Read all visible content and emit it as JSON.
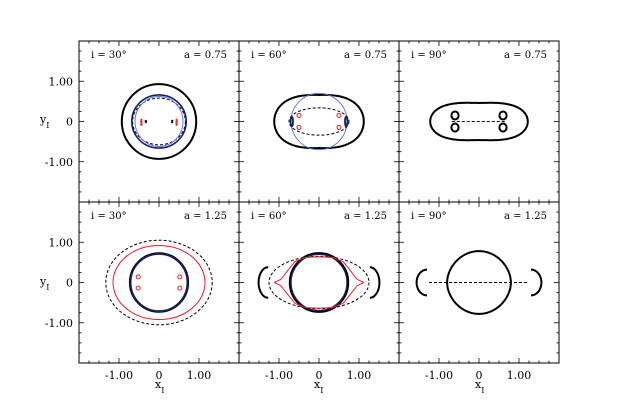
{
  "chart_data": {
    "type": "line",
    "grid_layout": "2 rows x 3 columns, shared axes",
    "xlabel": "x",
    "xlabel_sub": "I",
    "ylabel": "y",
    "ylabel_sub": "I",
    "xlim": [
      -2.0,
      2.0
    ],
    "ylim": [
      -2.0,
      2.0
    ],
    "x_ticks": [
      -1.0,
      0.0,
      1.0
    ],
    "x_tick_labels": [
      "-1.00",
      "0",
      "1.00"
    ],
    "y_ticks": [
      1.0,
      0.0,
      -1.0
    ],
    "y_tick_labels": [
      "1.00",
      "0",
      "-1.00"
    ],
    "colors": {
      "black": "#000000",
      "red": "#e8202a",
      "blue": "#5b7fd6",
      "navy": "#1a1f5a"
    },
    "panels": [
      {
        "id": "p1",
        "row": 0,
        "col": 0,
        "incl_label": "i = 30°",
        "a_label": "a = 0.75",
        "curves": [
          {
            "style": "solid",
            "color": "black",
            "width": 2.0,
            "kind": "ellipse",
            "cx": 0,
            "cy": 0,
            "rx": 0.93,
            "ry": 0.93
          },
          {
            "style": "dashed",
            "color": "black",
            "width": 1.0,
            "kind": "ellipse",
            "cx": 0,
            "cy": 0,
            "rx": 0.66,
            "ry": 0.58
          },
          {
            "style": "solid",
            "color": "navy",
            "width": 1.6,
            "kind": "ellipse",
            "cx": 0,
            "cy": 0,
            "rx": 0.68,
            "ry": 0.66
          },
          {
            "style": "solid",
            "color": "blue",
            "width": 1.0,
            "kind": "ellipse",
            "cx": 0,
            "cy": 0,
            "rx": 0.6,
            "ry": 0.62
          },
          {
            "style": "solid",
            "color": "red",
            "width": 1.0,
            "kind": "ellipse",
            "cx": -0.44,
            "cy": 0.02,
            "rx": 0.015,
            "ry": 0.04
          },
          {
            "style": "solid",
            "color": "red",
            "width": 1.0,
            "kind": "ellipse",
            "cx": 0.44,
            "cy": 0.02,
            "rx": 0.015,
            "ry": 0.04
          },
          {
            "style": "solid",
            "color": "red",
            "width": 1.0,
            "kind": "ellipse",
            "cx": -0.44,
            "cy": -0.06,
            "rx": 0.015,
            "ry": 0.04
          },
          {
            "style": "solid",
            "color": "red",
            "width": 1.0,
            "kind": "ellipse",
            "cx": 0.44,
            "cy": -0.06,
            "rx": 0.015,
            "ry": 0.04
          },
          {
            "style": "solid",
            "color": "black",
            "width": 1.0,
            "kind": "ellipse",
            "cx": -0.33,
            "cy": 0.0,
            "rx": 0.015,
            "ry": 0.03
          },
          {
            "style": "solid",
            "color": "black",
            "width": 1.0,
            "kind": "ellipse",
            "cx": 0.33,
            "cy": 0.0,
            "rx": 0.015,
            "ry": 0.03
          }
        ]
      },
      {
        "id": "p2",
        "row": 0,
        "col": 1,
        "incl_label": "i = 60°",
        "a_label": "a = 0.75",
        "curves": [
          {
            "style": "solid",
            "color": "black",
            "width": 2.0,
            "kind": "pinched",
            "rx": 1.12,
            "ry_center": 0.66,
            "ry_side": 0.8
          },
          {
            "style": "solid",
            "color": "blue",
            "width": 1.0,
            "kind": "ellipse",
            "cx": 0,
            "cy": 0,
            "rx": 0.7,
            "ry": 0.7
          },
          {
            "style": "dashed",
            "color": "black",
            "width": 1.0,
            "kind": "ellipse",
            "cx": 0,
            "cy": 0,
            "rx": 0.75,
            "ry": 0.34
          },
          {
            "style": "solid",
            "color": "navy",
            "width": 1.8,
            "kind": "ellipse",
            "cx": -0.68,
            "cy": 0.0,
            "rx": 0.03,
            "ry": 0.12
          },
          {
            "style": "solid",
            "color": "navy",
            "width": 1.8,
            "kind": "ellipse",
            "cx": 0.68,
            "cy": 0.0,
            "rx": 0.03,
            "ry": 0.12
          },
          {
            "style": "solid",
            "color": "red",
            "width": 1.0,
            "kind": "ellipse",
            "cx": -0.5,
            "cy": 0.15,
            "rx": 0.05,
            "ry": 0.05
          },
          {
            "style": "solid",
            "color": "red",
            "width": 1.0,
            "kind": "ellipse",
            "cx": 0.5,
            "cy": 0.15,
            "rx": 0.05,
            "ry": 0.05
          },
          {
            "style": "solid",
            "color": "red",
            "width": 1.0,
            "kind": "ellipse",
            "cx": -0.5,
            "cy": -0.15,
            "rx": 0.05,
            "ry": 0.05
          },
          {
            "style": "solid",
            "color": "red",
            "width": 1.0,
            "kind": "ellipse",
            "cx": 0.5,
            "cy": -0.15,
            "rx": 0.05,
            "ry": 0.05
          }
        ]
      },
      {
        "id": "p3",
        "row": 0,
        "col": 2,
        "incl_label": "i = 90°",
        "a_label": "a = 0.75",
        "curves": [
          {
            "style": "solid",
            "color": "black",
            "width": 2.0,
            "kind": "pinched",
            "rx": 1.22,
            "ry_center": 0.46,
            "ry_side": 0.62
          },
          {
            "style": "dashed",
            "color": "black",
            "width": 1.0,
            "kind": "segment",
            "x1": -0.68,
            "y1": 0.0,
            "x2": 0.68,
            "y2": 0.0
          },
          {
            "style": "solid",
            "color": "black",
            "width": 2.0,
            "kind": "ellipse",
            "cx": -0.6,
            "cy": 0.15,
            "rx": 0.09,
            "ry": 0.1
          },
          {
            "style": "solid",
            "color": "black",
            "width": 2.0,
            "kind": "ellipse",
            "cx": -0.6,
            "cy": -0.15,
            "rx": 0.09,
            "ry": 0.1
          },
          {
            "style": "solid",
            "color": "black",
            "width": 2.0,
            "kind": "ellipse",
            "cx": 0.6,
            "cy": 0.15,
            "rx": 0.09,
            "ry": 0.1
          },
          {
            "style": "solid",
            "color": "black",
            "width": 2.0,
            "kind": "ellipse",
            "cx": 0.6,
            "cy": -0.15,
            "rx": 0.09,
            "ry": 0.1
          }
        ]
      },
      {
        "id": "p4",
        "row": 1,
        "col": 0,
        "incl_label": "i = 30°",
        "a_label": "a = 1.25",
        "curves": [
          {
            "style": "dashed",
            "color": "black",
            "width": 1.0,
            "kind": "ellipse",
            "cx": 0,
            "cy": 0,
            "rx": 1.33,
            "ry": 1.05
          },
          {
            "style": "solid",
            "color": "red",
            "width": 1.0,
            "kind": "ellipse",
            "cx": 0,
            "cy": 0,
            "rx": 1.15,
            "ry": 0.92
          },
          {
            "style": "solid",
            "color": "black",
            "width": 1.0,
            "kind": "ellipse",
            "cx": 0,
            "cy": 0,
            "rx": 0.74,
            "ry": 0.74
          },
          {
            "style": "solid",
            "color": "navy",
            "width": 1.8,
            "kind": "ellipse",
            "cx": 0,
            "cy": 0,
            "rx": 0.71,
            "ry": 0.71
          },
          {
            "style": "solid",
            "color": "red",
            "width": 1.0,
            "kind": "ellipse",
            "cx": -0.52,
            "cy": 0.14,
            "rx": 0.05,
            "ry": 0.05
          },
          {
            "style": "solid",
            "color": "red",
            "width": 1.0,
            "kind": "ellipse",
            "cx": 0.52,
            "cy": 0.14,
            "rx": 0.05,
            "ry": 0.05
          },
          {
            "style": "solid",
            "color": "red",
            "width": 1.0,
            "kind": "ellipse",
            "cx": -0.52,
            "cy": -0.14,
            "rx": 0.05,
            "ry": 0.05
          },
          {
            "style": "solid",
            "color": "red",
            "width": 1.0,
            "kind": "ellipse",
            "cx": 0.52,
            "cy": -0.14,
            "rx": 0.05,
            "ry": 0.05
          }
        ]
      },
      {
        "id": "p5",
        "row": 1,
        "col": 1,
        "incl_label": "i = 60°",
        "a_label": "a = 1.25",
        "curves": [
          {
            "style": "dashed",
            "color": "black",
            "width": 1.0,
            "kind": "ellipse",
            "cx": 0,
            "cy": 0,
            "rx": 1.25,
            "ry": 0.65
          },
          {
            "style": "solid",
            "color": "black",
            "width": 2.0,
            "kind": "ellipse",
            "cx": 0,
            "cy": 0,
            "rx": 0.73,
            "ry": 0.73
          },
          {
            "style": "solid",
            "color": "navy",
            "width": 1.4,
            "kind": "ellipse",
            "cx": 0,
            "cy": 0,
            "rx": 0.7,
            "ry": 0.7
          },
          {
            "style": "solid",
            "color": "black",
            "width": 2.0,
            "kind": "lobe_left",
            "cx": -1.27,
            "cy": 0.0,
            "rx": 0.24,
            "ry": 0.38
          },
          {
            "style": "solid",
            "color": "black",
            "width": 2.0,
            "kind": "lobe_right",
            "cx": 1.27,
            "cy": 0.0,
            "rx": 0.24,
            "ry": 0.38
          },
          {
            "style": "solid",
            "color": "red",
            "width": 1.0,
            "kind": "red_caustic",
            "sign": 1
          },
          {
            "style": "solid",
            "color": "red",
            "width": 1.0,
            "kind": "red_caustic",
            "sign": -1
          }
        ]
      },
      {
        "id": "p6",
        "row": 1,
        "col": 2,
        "incl_label": "i = 90°",
        "a_label": "a = 1.25",
        "curves": [
          {
            "style": "solid",
            "color": "black",
            "width": 2.0,
            "kind": "bell",
            "xspan": 0.8,
            "ytop": 0.78
          },
          {
            "style": "solid",
            "color": "black",
            "width": 2.0,
            "kind": "lobe_left",
            "cx": -1.3,
            "cy": 0.0,
            "rx": 0.26,
            "ry": 0.32
          },
          {
            "style": "solid",
            "color": "black",
            "width": 2.0,
            "kind": "lobe_right",
            "cx": 1.3,
            "cy": 0.0,
            "rx": 0.26,
            "ry": 0.32
          },
          {
            "style": "dashed",
            "color": "black",
            "width": 1.0,
            "kind": "segment",
            "x1": -1.25,
            "y1": 0.0,
            "x2": 1.25,
            "y2": 0.0
          }
        ]
      }
    ]
  }
}
